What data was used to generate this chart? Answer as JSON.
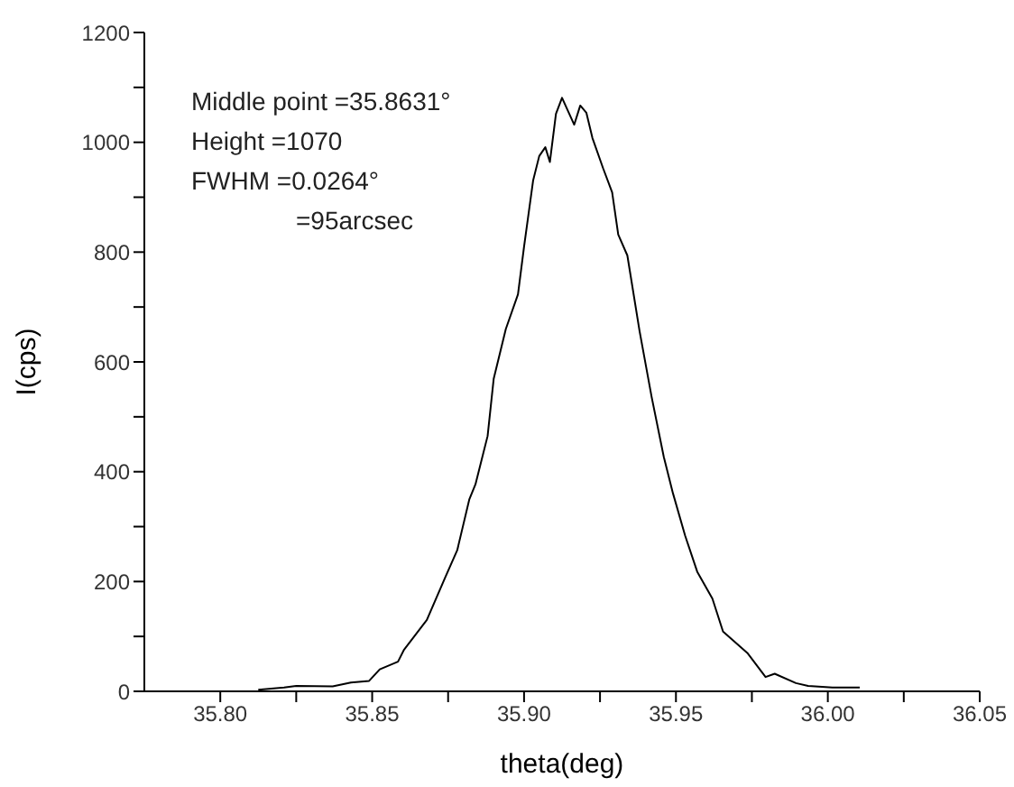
{
  "chart_data": {
    "type": "line",
    "xlabel": "theta(deg)",
    "ylabel": "I(cps)",
    "annotations": [
      "Middle point =35.8631°",
      "Height =1070",
      "FWHM =0.0264°",
      "=95arcsec"
    ],
    "x": [
      35.8125,
      35.821,
      35.825,
      35.837,
      35.843,
      35.849,
      35.8525,
      35.8585,
      35.8605,
      35.868,
      35.874,
      35.878,
      35.882,
      35.884,
      35.888,
      35.89,
      35.894,
      35.898,
      35.9,
      35.903,
      35.905,
      35.907,
      35.9085,
      35.9105,
      35.9125,
      35.9165,
      35.9185,
      35.9205,
      35.9225,
      35.926,
      35.929,
      35.931,
      35.934,
      35.938,
      35.942,
      35.946,
      35.949,
      35.953,
      35.957,
      35.962,
      35.9655,
      35.9735,
      35.9795,
      35.9825,
      35.9895,
      35.9935,
      36.0015,
      36.0105
    ],
    "series": [
      {
        "color": "#000000",
        "values": [
          3,
          7,
          10,
          9,
          16,
          19,
          40,
          54,
          76,
          130,
          207,
          257,
          350,
          377,
          465,
          569,
          660,
          723,
          810,
          931,
          975,
          991,
          964,
          1052,
          1081,
          1032,
          1067,
          1054,
          1008,
          953,
          909,
          832,
          794,
          657,
          536,
          427,
          361,
          284,
          218,
          169,
          109,
          70,
          26,
          32,
          15,
          10,
          7,
          7
        ]
      }
    ],
    "xlim": [
      35.775,
      36.05
    ],
    "xticks": [
      {
        "value": 35.8,
        "label": "35.80"
      },
      {
        "value": 35.825,
        "label": null
      },
      35.85,
      {
        "value": 35.875,
        "label": null
      },
      {
        "value": 35.9,
        "label": "35.90"
      },
      {
        "value": 35.925,
        "label": null
      },
      35.95,
      {
        "value": 35.975,
        "label": null
      },
      {
        "value": 36.0,
        "label": "36.00"
      },
      {
        "value": 36.025,
        "label": null
      },
      36.05
    ],
    "ylim": [
      0,
      1200
    ],
    "yticks": [
      0,
      {
        "value": 100,
        "label": null
      },
      200,
      {
        "value": 300,
        "label": null
      },
      400,
      {
        "value": 500,
        "label": null
      },
      600,
      {
        "value": 700,
        "label": null
      },
      800,
      {
        "value": 900,
        "label": null
      },
      1000,
      {
        "value": 1100,
        "label": null
      },
      1200
    ],
    "grid": false,
    "legend": false,
    "marker": "none",
    "line_style": "solid"
  }
}
